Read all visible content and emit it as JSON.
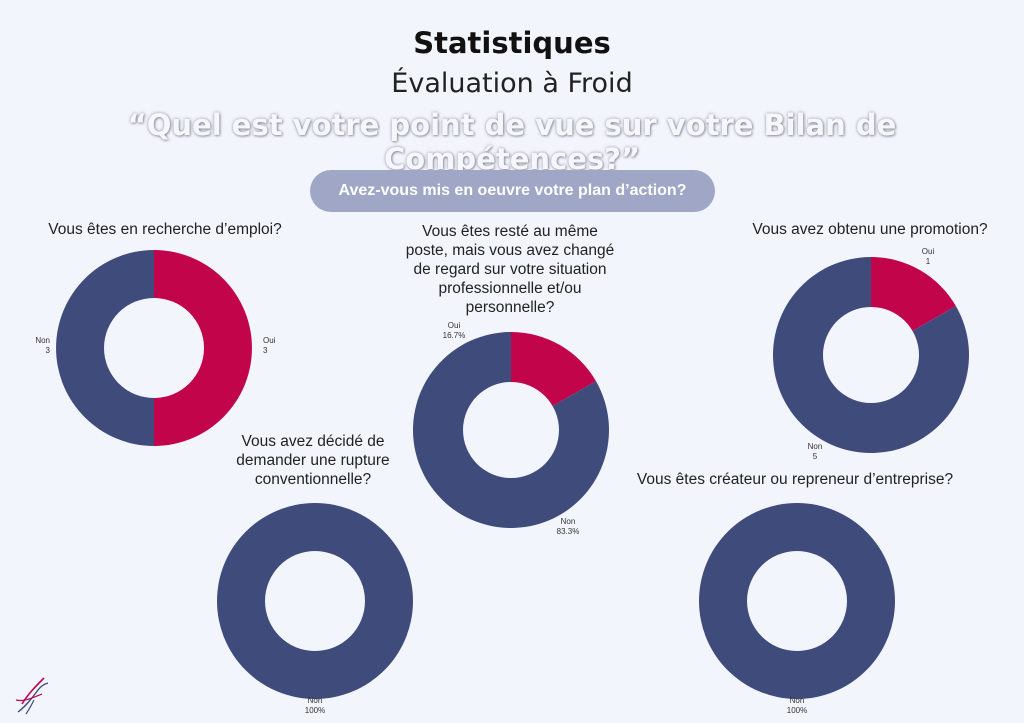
{
  "header": {
    "title": "Statistiques",
    "subtitle": "Évaluation à Froid",
    "question": "“Quel est votre point de vue sur votre Bilan de Compétences?”",
    "section_label": "Avez-vous mis en oeuvre votre plan d’action?"
  },
  "colors": {
    "oui": "#c2044a",
    "non": "#3e4b7b",
    "pill": "#9fa6c6",
    "background": "#f3f5fd"
  },
  "chart_data": [
    {
      "type": "pie",
      "title": "Vous êtes en recherche d’emploi?",
      "slices": [
        {
          "label": "Oui",
          "value": 3,
          "display": "3"
        },
        {
          "label": "Non",
          "value": 3,
          "display": "3"
        }
      ]
    },
    {
      "type": "pie",
      "title": "Vous êtes resté au même poste, mais vous avez changé de regard sur votre situation professionnelle et/ou personnelle?",
      "slices": [
        {
          "label": "Oui",
          "value": 16.7,
          "display": "16.7%"
        },
        {
          "label": "Non",
          "value": 83.3,
          "display": "83.3%"
        }
      ]
    },
    {
      "type": "pie",
      "title": "Vous avez obtenu une promotion?",
      "slices": [
        {
          "label": "Oui",
          "value": 1,
          "display": "1"
        },
        {
          "label": "Non",
          "value": 5,
          "display": "5"
        }
      ]
    },
    {
      "type": "pie",
      "title": "Vous avez décidé de demander une rupture conventionnelle?",
      "slices": [
        {
          "label": "Non",
          "value": 100,
          "display": "100%"
        }
      ]
    },
    {
      "type": "pie",
      "title": "Vous êtes créateur ou repreneur d’entreprise?",
      "slices": [
        {
          "label": "Non",
          "value": 100,
          "display": "100%"
        }
      ]
    }
  ]
}
